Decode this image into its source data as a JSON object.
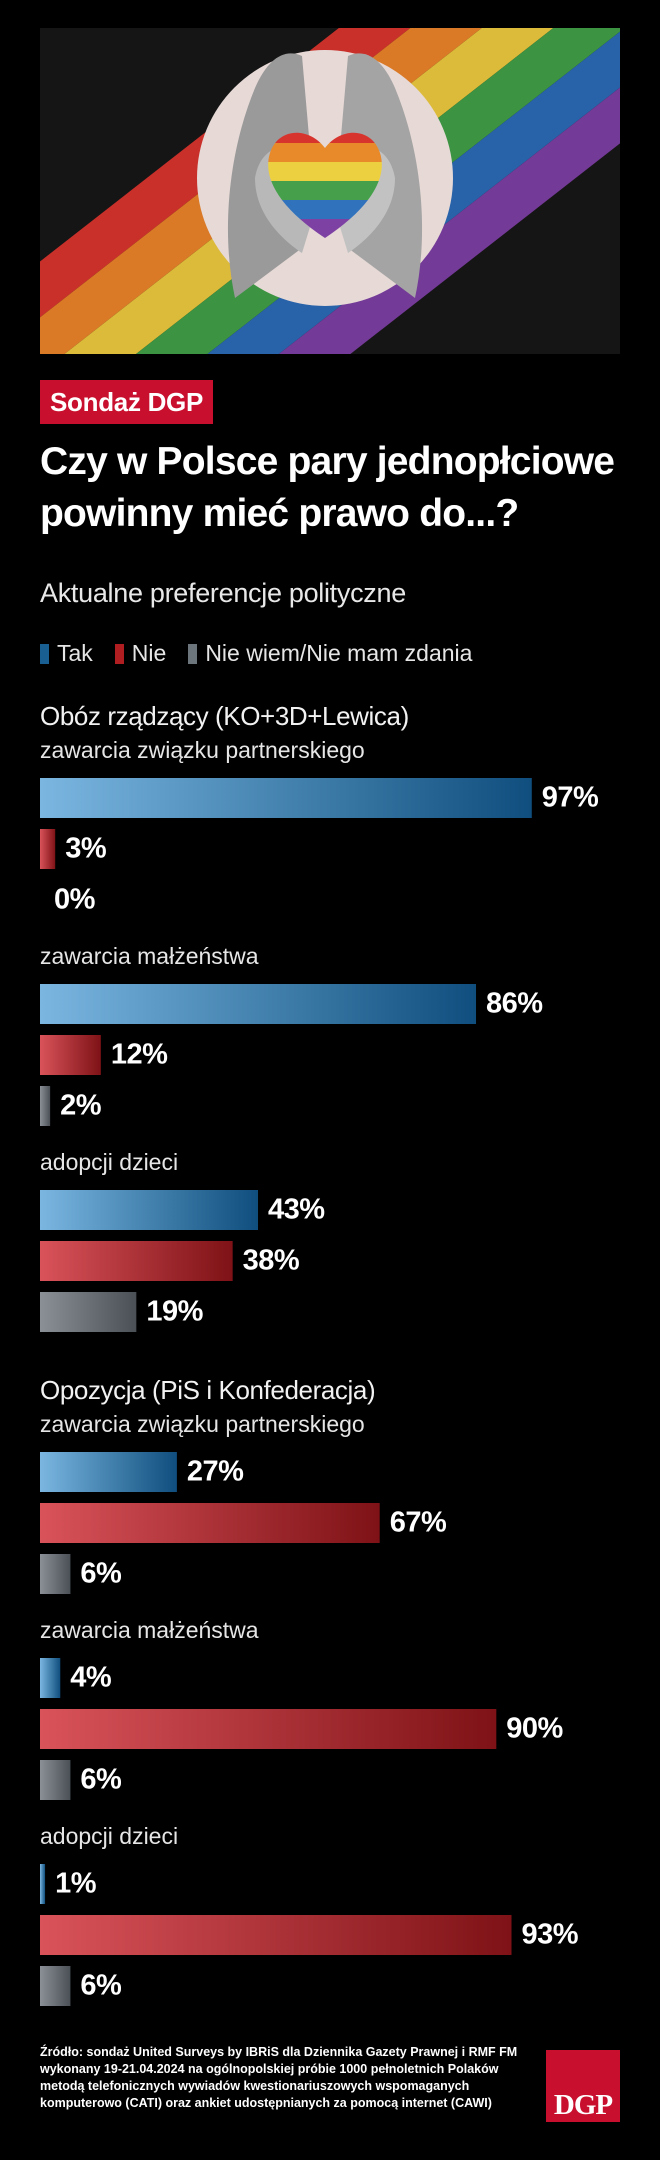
{
  "header": {
    "badge": "Sondaż DGP",
    "title": "Czy w Polsce pary jednopłciowe powinny mieć prawo do...?",
    "subtitle": "Aktualne preferencje polityczne"
  },
  "legend": [
    {
      "label": "Tak",
      "color": "#1a5f91"
    },
    {
      "label": "Nie",
      "color": "#b01e22"
    },
    {
      "label": "Nie wiem/Nie mam zdania",
      "color": "#6c747c"
    }
  ],
  "footer": {
    "source": "Źródło: sondaż United Surveys by IBRiS dla Dziennika Gazety Prawnej i RMF FM wykonany 19-21.04.2024 na ogólnopolskiej próbie 1000 pełnoletnich Polaków metodą telefonicznych wywiadów kwestionariuszowych wspomaganych komputerowo (CATI) oraz ankiet udostępnianych za pomocą internet (CAWI)",
    "logo": "DGP"
  },
  "colors": {
    "tak": [
      "#7ab6e0",
      "#0f4e7e"
    ],
    "nie": [
      "#d9535a",
      "#7e1216"
    ],
    "niewiem": [
      "#8a9096",
      "#4a5056"
    ]
  },
  "chart_data": {
    "type": "bar",
    "orientation": "horizontal",
    "unit": "%",
    "xlim": [
      0,
      100
    ],
    "series_names": [
      "Tak",
      "Nie",
      "Nie wiem/Nie mam zdania"
    ],
    "groups": [
      {
        "name": "Obóz rządzący (KO+3D+Lewica)",
        "questions": [
          {
            "label": "zawarcia związku partnerskiego",
            "values": [
              97,
              3,
              0
            ]
          },
          {
            "label": "zawarcia małżeństwa",
            "values": [
              86,
              12,
              2
            ]
          },
          {
            "label": "adopcji dzieci",
            "values": [
              43,
              38,
              19
            ]
          }
        ]
      },
      {
        "name": "Opozycja (PiS i Konfederacja)",
        "questions": [
          {
            "label": "zawarcia związku partnerskiego",
            "values": [
              27,
              67,
              6
            ]
          },
          {
            "label": "zawarcia małżeństwa",
            "values": [
              4,
              90,
              6
            ]
          },
          {
            "label": "adopcji dzieci",
            "values": [
              1,
              93,
              6
            ]
          }
        ]
      }
    ]
  }
}
